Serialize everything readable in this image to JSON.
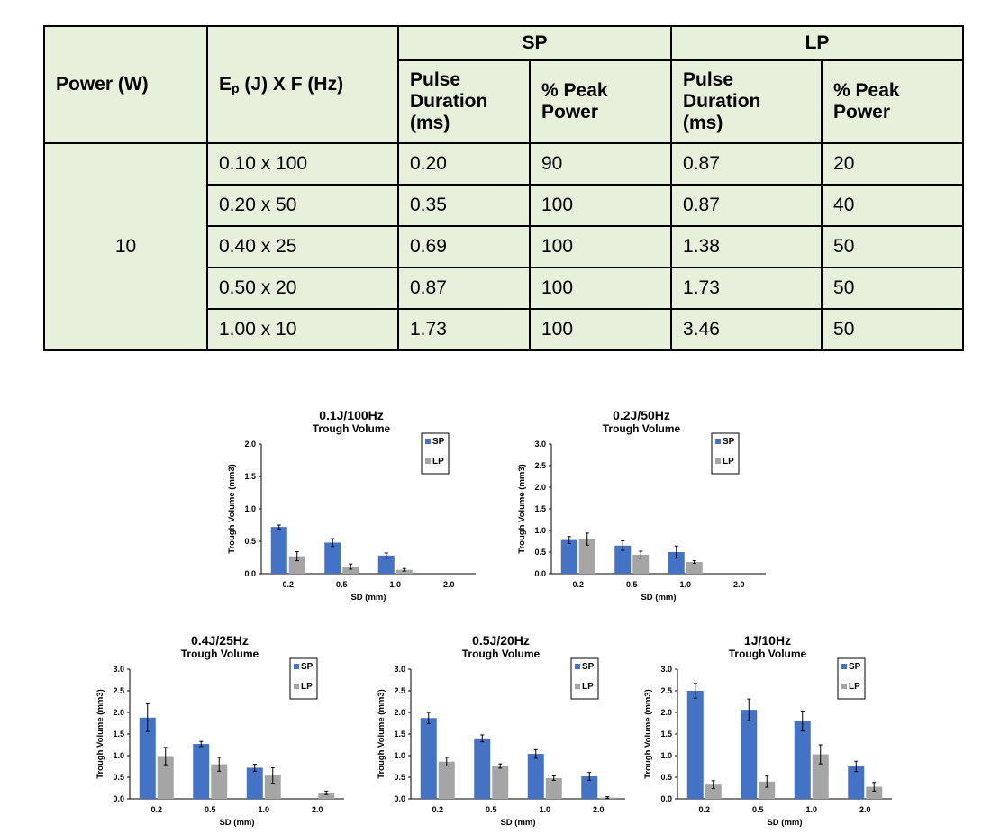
{
  "table": {
    "header": {
      "power": "Power (W)",
      "ep_main": "E",
      "ep_sub": "p",
      "ep_rest": " (J) X F (Hz)",
      "sp": "SP",
      "lp": "LP",
      "pulse_line1": "Pulse",
      "pulse_line2": "Duration",
      "pulse_line3": "(ms)",
      "peak_line1": "% Peak",
      "peak_line2": "Power"
    },
    "power_value": "10",
    "rows": [
      {
        "ep": "0.10 x 100",
        "sp_pd": "0.20",
        "sp_pp": "90",
        "lp_pd": "0.87",
        "lp_pp": "20"
      },
      {
        "ep": "0.20 x 50",
        "sp_pd": "0.35",
        "sp_pp": "100",
        "lp_pd": "0.87",
        "lp_pp": "40"
      },
      {
        "ep": "0.40 x 25",
        "sp_pd": "0.69",
        "sp_pp": "100",
        "lp_pd": "1.38",
        "lp_pp": "50"
      },
      {
        "ep": "0.50 x 20",
        "sp_pd": "0.87",
        "sp_pp": "100",
        "lp_pd": "1.73",
        "lp_pp": "50"
      },
      {
        "ep": "1.00 x 10",
        "sp_pd": "1.73",
        "sp_pp": "100",
        "lp_pd": "3.46",
        "lp_pp": "50"
      }
    ]
  },
  "colors": {
    "sp": "#4472c4",
    "lp": "#a5a5a5",
    "table_bg": "#e6f0da"
  },
  "chart_data": [
    {
      "type": "bar",
      "title": "0.1J/100Hz",
      "subtitle": "Trough Volume",
      "xlabel": "SD (mm)",
      "ylabel": "Trough Volume (mm3)",
      "categories": [
        "0.2",
        "0.5",
        "1.0",
        "2.0"
      ],
      "ylim": [
        0,
        2.0
      ],
      "yticks": [
        "0.0",
        "0.5",
        "1.0",
        "1.5",
        "2.0"
      ],
      "series": [
        {
          "name": "SP",
          "values": [
            0.72,
            0.48,
            0.28,
            null
          ],
          "errors": [
            0.03,
            0.06,
            0.04,
            null
          ]
        },
        {
          "name": "LP",
          "values": [
            0.27,
            0.11,
            0.06,
            null
          ],
          "errors": [
            0.07,
            0.04,
            0.02,
            null
          ]
        }
      ]
    },
    {
      "type": "bar",
      "title": "0.2J/50Hz",
      "subtitle": "Trough Volume",
      "xlabel": "SD (mm)",
      "ylabel": "Trough Volume (mm3)",
      "categories": [
        "0.2",
        "0.5",
        "1.0",
        "2.0"
      ],
      "ylim": [
        0,
        3.0
      ],
      "yticks": [
        "0.0",
        "0.5",
        "1.0",
        "1.5",
        "2.0",
        "2.5",
        "3.0"
      ],
      "series": [
        {
          "name": "SP",
          "values": [
            0.78,
            0.65,
            0.5,
            null
          ],
          "errors": [
            0.08,
            0.11,
            0.14,
            null
          ]
        },
        {
          "name": "LP",
          "values": [
            0.8,
            0.44,
            0.27,
            null
          ],
          "errors": [
            0.14,
            0.08,
            0.03,
            null
          ]
        }
      ]
    },
    {
      "type": "bar",
      "title": "0.4J/25Hz",
      "subtitle": "Trough Volume",
      "xlabel": "SD (mm)",
      "ylabel": "Trough Volume (mm3)",
      "categories": [
        "0.2",
        "0.5",
        "1.0",
        "2.0"
      ],
      "ylim": [
        0,
        3.0
      ],
      "yticks": [
        "0.0",
        "0.5",
        "1.0",
        "1.5",
        "2.0",
        "2.5",
        "3.0"
      ],
      "series": [
        {
          "name": "SP",
          "values": [
            1.88,
            1.27,
            0.72,
            null
          ],
          "errors": [
            0.32,
            0.06,
            0.08,
            null
          ]
        },
        {
          "name": "LP",
          "values": [
            0.99,
            0.8,
            0.54,
            0.14
          ],
          "errors": [
            0.2,
            0.16,
            0.18,
            0.04
          ]
        }
      ]
    },
    {
      "type": "bar",
      "title": "0.5J/20Hz",
      "subtitle": "Trough Volume",
      "xlabel": "SD (mm)",
      "ylabel": "Trough Volume (mm3)",
      "categories": [
        "0.2",
        "0.5",
        "1.0",
        "2.0"
      ],
      "ylim": [
        0,
        3.0
      ],
      "yticks": [
        "0.0",
        "0.5",
        "1.0",
        "1.5",
        "2.0",
        "2.5",
        "3.0"
      ],
      "series": [
        {
          "name": "SP",
          "values": [
            1.87,
            1.4,
            1.04,
            0.52
          ],
          "errors": [
            0.13,
            0.08,
            0.1,
            0.09
          ]
        },
        {
          "name": "LP",
          "values": [
            0.86,
            0.76,
            0.48,
            0.03
          ],
          "errors": [
            0.1,
            0.05,
            0.05,
            0.02
          ]
        }
      ]
    },
    {
      "type": "bar",
      "title": "1J/10Hz",
      "subtitle": "Trough Volume",
      "xlabel": "SD (mm)",
      "ylabel": "Trough Volume (mm3)",
      "categories": [
        "0.2",
        "0.5",
        "1.0",
        "2.0"
      ],
      "ylim": [
        0,
        3.0
      ],
      "yticks": [
        "0.0",
        "0.5",
        "1.0",
        "1.5",
        "2.0",
        "2.5",
        "3.0"
      ],
      "series": [
        {
          "name": "SP",
          "values": [
            2.5,
            2.06,
            1.8,
            0.75
          ],
          "errors": [
            0.17,
            0.25,
            0.23,
            0.12
          ]
        },
        {
          "name": "LP",
          "values": [
            0.33,
            0.4,
            1.03,
            0.28
          ],
          "errors": [
            0.09,
            0.13,
            0.22,
            0.1
          ]
        }
      ]
    }
  ]
}
